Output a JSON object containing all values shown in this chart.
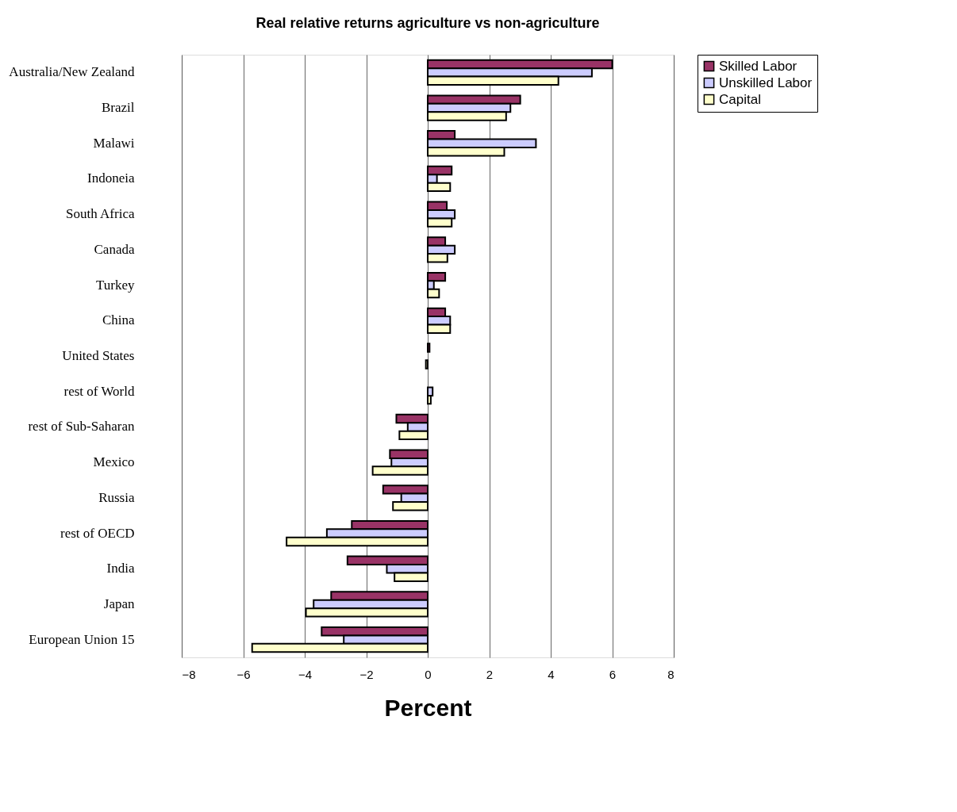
{
  "chart_data": {
    "type": "bar",
    "orientation": "horizontal",
    "title": "Real relative returns agriculture vs non-agriculture",
    "xlabel": "Percent",
    "categories": [
      "Australia/New Zealand",
      "Brazil",
      "Malawi",
      "Indoneia",
      "South Africa",
      "Canada",
      "Turkey",
      "China",
      "United States",
      "rest of World",
      "rest of Sub-Saharan",
      "Mexico",
      "Russia",
      "rest of OECD",
      "India",
      "Japan",
      "European Union 15"
    ],
    "series": [
      {
        "name": "Skilled Labor",
        "color": "#993366",
        "values": [
          6.0,
          3.01,
          0.88,
          0.78,
          0.62,
          0.57,
          0.57,
          0.57,
          0.06,
          null,
          -1.02,
          -1.23,
          -1.45,
          -2.47,
          -2.61,
          -3.14,
          -3.45
        ]
      },
      {
        "name": "Unskilled Labor",
        "color": "#ccccff",
        "values": [
          5.34,
          2.69,
          3.52,
          0.3,
          0.88,
          0.88,
          0.2,
          0.73,
          null,
          0.16,
          -0.65,
          -1.18,
          -0.86,
          -3.28,
          -1.33,
          -3.71,
          -2.73
        ]
      },
      {
        "name": "Capital",
        "color": "#ffffcc",
        "values": [
          4.25,
          2.55,
          2.49,
          0.73,
          0.78,
          0.64,
          0.37,
          0.73,
          -0.06,
          0.1,
          -0.92,
          -1.79,
          -1.13,
          -4.59,
          -1.08,
          -3.96,
          -5.71
        ]
      }
    ],
    "xlim": [
      -8,
      8
    ],
    "xticks": [
      -8,
      -6,
      -4,
      -2,
      0,
      2,
      4,
      6,
      8
    ],
    "grid": "x",
    "legend": "right"
  }
}
